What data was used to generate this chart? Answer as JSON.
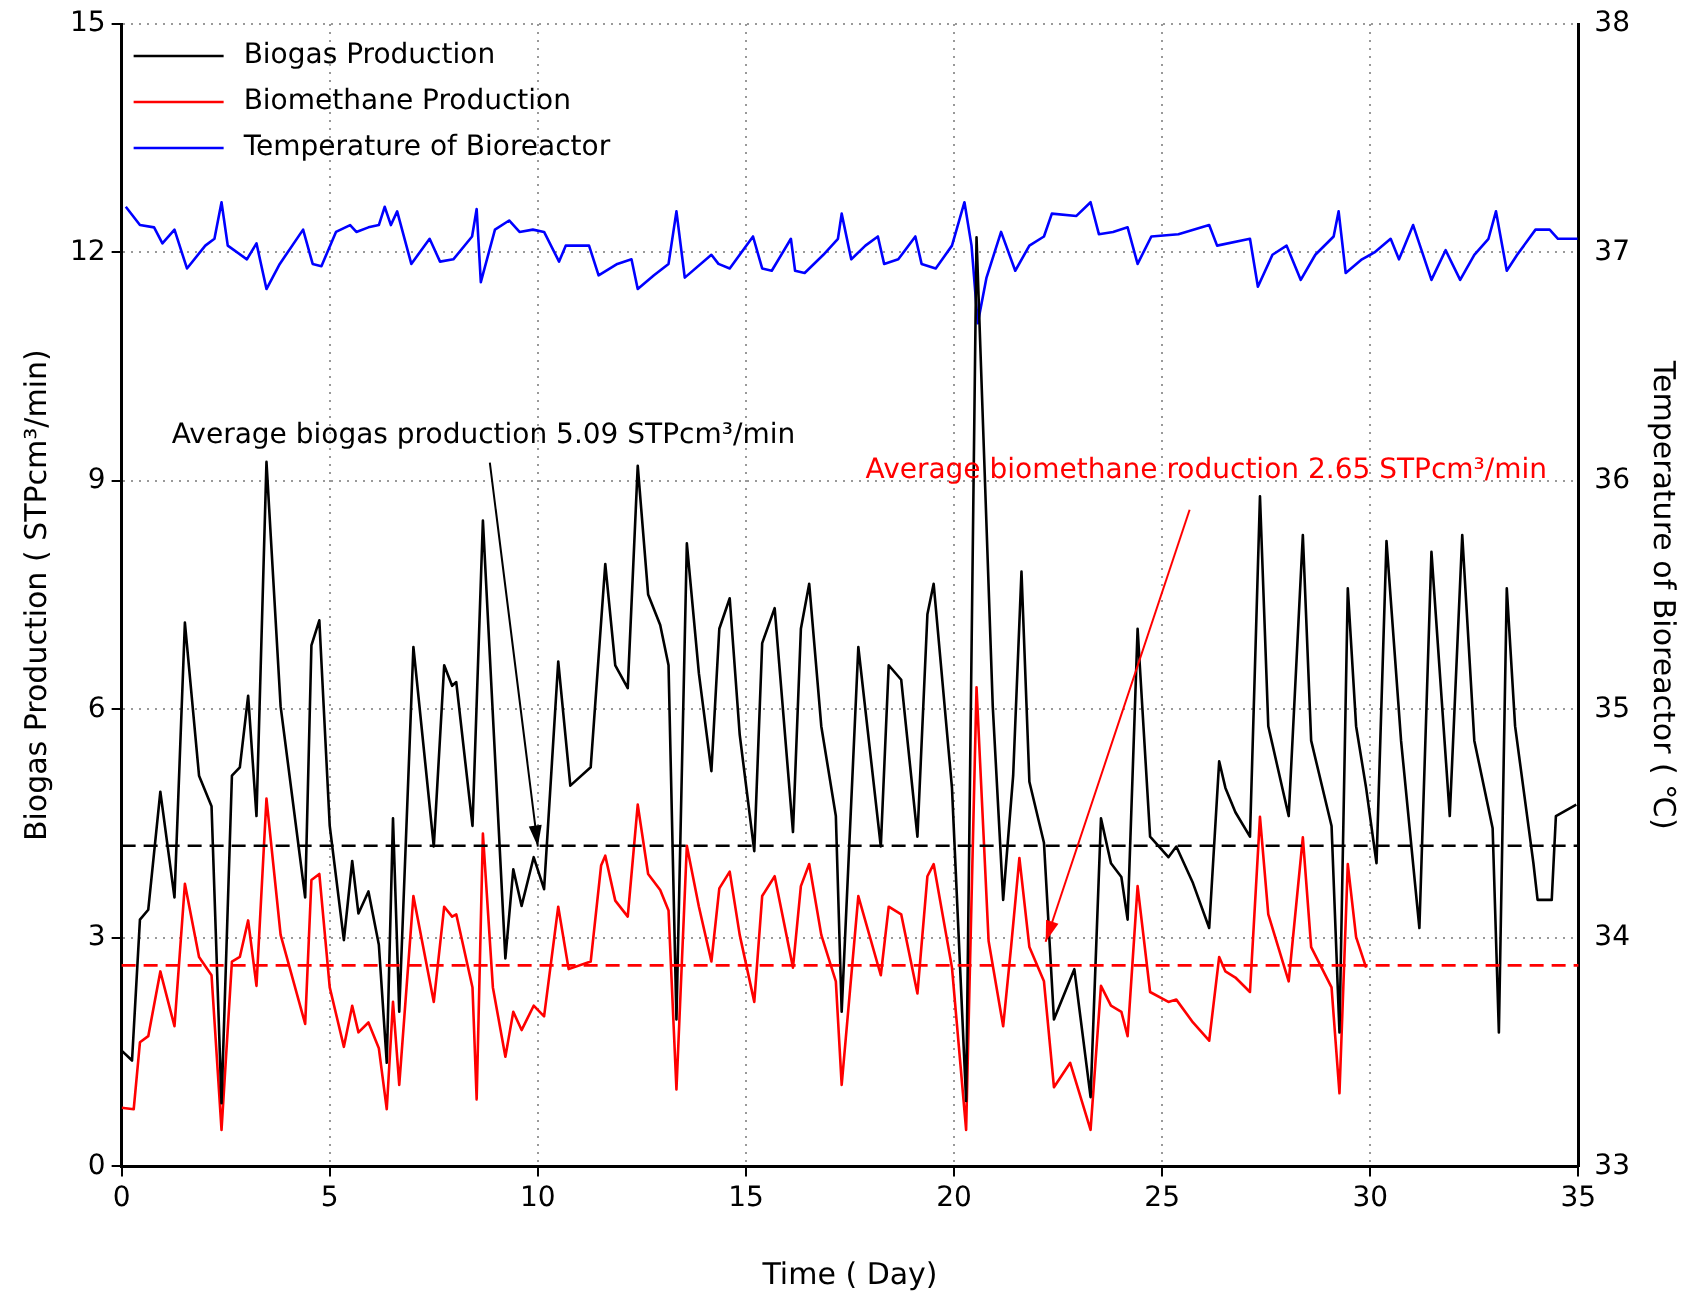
{
  "chart_data": {
    "type": "line",
    "xlabel": "Time ( Day)",
    "ylabel": "Biogas Production ( STPcm³/min)",
    "y2label": "Temperature of Bioreactor ( ℃)",
    "xlim": [
      0,
      35
    ],
    "xticks": [
      0,
      5,
      10,
      15,
      20,
      25,
      30,
      35
    ],
    "ylim": [
      0,
      15
    ],
    "yticks": [
      0,
      3,
      6,
      9,
      12,
      15
    ],
    "y2lim": [
      33,
      38
    ],
    "y2ticks": [
      33,
      34,
      35,
      36,
      37,
      38
    ],
    "grid": true,
    "legend": "top left",
    "marker": "none",
    "line_style": "solid",
    "series": [
      {
        "name": "Biogas Production",
        "color": "#000000",
        "x": [
          0,
          0.25,
          0.44,
          0.64,
          0.93,
          1.27,
          1.52,
          1.86,
          2.16,
          2.4,
          2.65,
          2.84,
          3.04,
          3.24,
          3.48,
          3.82,
          4.41,
          4.56,
          4.75,
          5.0,
          5.34,
          5.54,
          5.69,
          5.93,
          6.18,
          6.37,
          6.52,
          6.67,
          7.01,
          7.5,
          7.75,
          7.94,
          8.04,
          8.43,
          8.68,
          9.22,
          9.41,
          9.61,
          9.9,
          10.15,
          10.49,
          10.78,
          11.27,
          11.62,
          11.86,
          12.16,
          12.4,
          12.65,
          12.94,
          13.14,
          13.33,
          13.58,
          13.87,
          14.17,
          14.36,
          14.61,
          14.85,
          15.2,
          15.39,
          15.69,
          16.13,
          16.32,
          16.52,
          16.81,
          17.16,
          17.3,
          17.7,
          18.24,
          18.43,
          18.73,
          19.12,
          19.36,
          19.51,
          19.95,
          20.29,
          20.54,
          20.93,
          21.18,
          21.42,
          21.62,
          21.81,
          22.16,
          22.4,
          22.89,
          23.28,
          23.53,
          23.77,
          24.02,
          24.17,
          24.41,
          24.71,
          25.15,
          25.34,
          25.74,
          26.13,
          26.37,
          26.52,
          26.76,
          27.11,
          27.35,
          27.55,
          28.04,
          28.38,
          28.58,
          29.07,
          29.26,
          29.46,
          29.66,
          29.9,
          30.15,
          30.39,
          30.74,
          31.18,
          31.47,
          31.91,
          32.21,
          32.5,
          32.94,
          33.09,
          33.28,
          33.48,
          33.92,
          34.02,
          34.36,
          34.46,
          34.95
        ],
        "values": [
          1.52,
          1.39,
          3.24,
          3.37,
          4.92,
          3.53,
          7.14,
          5.13,
          4.73,
          0.83,
          5.13,
          5.24,
          6.18,
          4.6,
          9.25,
          6.04,
          3.53,
          6.84,
          7.17,
          4.47,
          2.97,
          4.01,
          3.32,
          3.61,
          2.91,
          1.36,
          4.57,
          2.03,
          6.82,
          4.2,
          6.58,
          6.31,
          6.36,
          4.47,
          8.48,
          2.73,
          3.9,
          3.42,
          4.06,
          3.64,
          6.63,
          5.0,
          5.24,
          7.91,
          6.58,
          6.28,
          9.2,
          7.51,
          7.11,
          6.58,
          1.93,
          8.18,
          6.47,
          5.19,
          7.06,
          7.46,
          5.67,
          4.14,
          6.87,
          7.33,
          4.39,
          7.06,
          7.65,
          5.78,
          4.6,
          2.03,
          6.82,
          4.2,
          6.58,
          6.39,
          4.33,
          7.25,
          7.65,
          4.97,
          0.86,
          12.2,
          6.04,
          3.5,
          5.13,
          7.81,
          5.05,
          4.25,
          1.93,
          2.59,
          0.91,
          4.57,
          3.98,
          3.8,
          3.24,
          7.06,
          4.33,
          4.06,
          4.2,
          3.72,
          3.13,
          5.32,
          4.97,
          4.65,
          4.33,
          8.8,
          5.78,
          4.6,
          8.29,
          5.59,
          4.47,
          1.76,
          7.59,
          5.78,
          4.97,
          3.98,
          8.21,
          5.59,
          3.13,
          8.07,
          4.6,
          8.29,
          5.59,
          4.44,
          1.76,
          7.59,
          5.78,
          3.98,
          3.5,
          3.5,
          4.6,
          4.75
        ]
      },
      {
        "name": "Biomethane Production",
        "color": "#ff0000",
        "x": [
          0,
          0.29,
          0.44,
          0.64,
          0.93,
          1.27,
          1.52,
          1.86,
          2.16,
          2.4,
          2.65,
          2.84,
          3.04,
          3.24,
          3.48,
          3.82,
          4.41,
          4.56,
          4.75,
          5.0,
          5.34,
          5.54,
          5.69,
          5.93,
          6.18,
          6.37,
          6.52,
          6.67,
          7.01,
          7.5,
          7.75,
          7.94,
          8.04,
          8.43,
          8.53,
          8.68,
          8.92,
          9.22,
          9.41,
          9.61,
          9.9,
          10.15,
          10.49,
          10.74,
          11.27,
          11.52,
          11.62,
          11.86,
          12.16,
          12.4,
          12.65,
          12.94,
          13.14,
          13.33,
          13.58,
          13.87,
          14.17,
          14.36,
          14.61,
          14.85,
          15.2,
          15.39,
          15.69,
          16.13,
          16.32,
          16.52,
          16.81,
          17.16,
          17.3,
          17.7,
          18.24,
          18.43,
          18.73,
          19.12,
          19.36,
          19.51,
          19.95,
          20.29,
          20.54,
          20.83,
          21.18,
          21.37,
          21.57,
          21.81,
          22.16,
          22.4,
          22.79,
          23.28,
          23.53,
          23.77,
          24.02,
          24.17,
          24.41,
          24.71,
          25.15,
          25.34,
          25.74,
          26.13,
          26.37,
          26.52,
          26.76,
          27.11,
          27.35,
          27.55,
          28.04,
          28.38,
          28.58,
          29.07,
          29.26,
          29.46,
          29.66,
          29.9
        ],
        "values": [
          0.77,
          0.75,
          1.63,
          1.71,
          2.56,
          1.84,
          3.71,
          2.75,
          2.51,
          0.48,
          2.69,
          2.75,
          3.23,
          2.37,
          4.83,
          3.04,
          1.87,
          3.76,
          3.84,
          2.35,
          1.57,
          2.11,
          1.76,
          1.89,
          1.55,
          0.75,
          2.16,
          1.07,
          3.55,
          2.16,
          3.41,
          3.28,
          3.31,
          2.35,
          0.88,
          4.37,
          2.35,
          1.44,
          2.03,
          1.79,
          2.11,
          1.97,
          3.41,
          2.59,
          2.69,
          3.95,
          4.08,
          3.49,
          3.28,
          4.75,
          3.84,
          3.63,
          3.36,
          1.01,
          4.21,
          3.41,
          2.69,
          3.65,
          3.87,
          3.04,
          2.16,
          3.55,
          3.81,
          2.61,
          3.68,
          3.97,
          3.04,
          2.43,
          1.07,
          3.55,
          2.51,
          3.41,
          3.31,
          2.27,
          3.81,
          3.97,
          2.61,
          0.48,
          6.29,
          2.96,
          1.84,
          2.88,
          4.05,
          2.88,
          2.43,
          1.04,
          1.36,
          0.48,
          2.37,
          2.11,
          2.03,
          1.71,
          3.68,
          2.29,
          2.16,
          2.19,
          1.89,
          1.65,
          2.75,
          2.56,
          2.48,
          2.29,
          4.59,
          3.31,
          2.43,
          4.32,
          2.88,
          2.35,
          0.96,
          3.97,
          3.01,
          2.61
        ]
      },
      {
        "name": "Temperature of Bioreactor",
        "color": "#0000ff",
        "axis": "y2",
        "x": [
          0.1,
          0.44,
          0.78,
          0.98,
          1.27,
          1.57,
          2.01,
          2.23,
          2.4,
          2.55,
          3.01,
          3.24,
          3.48,
          3.8,
          4.36,
          4.59,
          4.8,
          5.15,
          5.49,
          5.64,
          5.93,
          6.18,
          6.32,
          6.47,
          6.62,
          6.96,
          7.4,
          7.65,
          7.97,
          8.42,
          8.53,
          8.63,
          8.97,
          9.31,
          9.56,
          9.88,
          10.15,
          10.51,
          10.67,
          11.23,
          11.46,
          11.91,
          12.25,
          12.4,
          12.79,
          13.14,
          13.33,
          13.53,
          14.17,
          14.34,
          14.61,
          15.17,
          15.39,
          15.62,
          16.08,
          16.18,
          16.41,
          16.86,
          17.21,
          17.3,
          17.53,
          17.87,
          18.17,
          18.32,
          18.66,
          19.07,
          19.22,
          19.56,
          19.95,
          20.25,
          20.42,
          20.57,
          20.78,
          21.13,
          21.47,
          21.81,
          22.16,
          22.35,
          22.94,
          23.28,
          23.48,
          23.82,
          24.17,
          24.41,
          24.74,
          25.39,
          26.13,
          26.32,
          27.11,
          27.3,
          27.65,
          27.99,
          28.33,
          28.68,
          29.12,
          29.24,
          29.41,
          29.8,
          30.1,
          30.49,
          30.69,
          31.03,
          31.47,
          31.81,
          32.16,
          32.5,
          32.84,
          33.02,
          33.28,
          33.53,
          33.97,
          34.31,
          34.51,
          34.98
        ],
        "values": [
          37.2,
          37.12,
          37.11,
          37.04,
          37.1,
          36.93,
          37.03,
          37.06,
          37.22,
          37.03,
          36.97,
          37.04,
          36.84,
          36.95,
          37.1,
          36.95,
          36.94,
          37.09,
          37.12,
          37.09,
          37.11,
          37.12,
          37.2,
          37.12,
          37.18,
          36.95,
          37.06,
          36.96,
          36.97,
          37.07,
          37.19,
          36.87,
          37.1,
          37.14,
          37.09,
          37.1,
          37.09,
          36.96,
          37.03,
          37.03,
          36.9,
          36.95,
          36.97,
          36.84,
          36.9,
          36.95,
          37.18,
          36.89,
          36.99,
          36.95,
          36.93,
          37.07,
          36.93,
          36.92,
          37.06,
          36.92,
          36.91,
          36.99,
          37.06,
          37.17,
          36.97,
          37.03,
          37.07,
          36.95,
          36.97,
          37.07,
          36.95,
          36.93,
          37.03,
          37.22,
          37.03,
          36.69,
          36.89,
          37.09,
          36.92,
          37.03,
          37.07,
          37.17,
          37.16,
          37.22,
          37.08,
          37.09,
          37.11,
          36.95,
          37.07,
          37.08,
          37.12,
          37.03,
          37.06,
          36.85,
          36.99,
          37.03,
          36.88,
          36.99,
          37.07,
          37.18,
          36.91,
          36.97,
          37.0,
          37.06,
          36.97,
          37.12,
          36.88,
          37.01,
          36.88,
          36.99,
          37.06,
          37.18,
          36.92,
          36.99,
          37.1,
          37.1,
          37.06,
          37.06
        ]
      }
    ],
    "ref_lines": [
      {
        "axis": "y",
        "value": 4.21,
        "color": "#000000",
        "line_style": "dashed"
      },
      {
        "axis": "y",
        "value": 2.64,
        "color": "#ff0000",
        "line_style": "dashed"
      }
    ],
    "annotations": [
      {
        "text": "Average biogas production 5.09 STPcm³/min",
        "x": 10,
        "y": 4.2
      },
      {
        "text": "Average biomethane roduction 2.65 STPcm³/min",
        "x": 22.2,
        "y": 2.95
      }
    ]
  }
}
